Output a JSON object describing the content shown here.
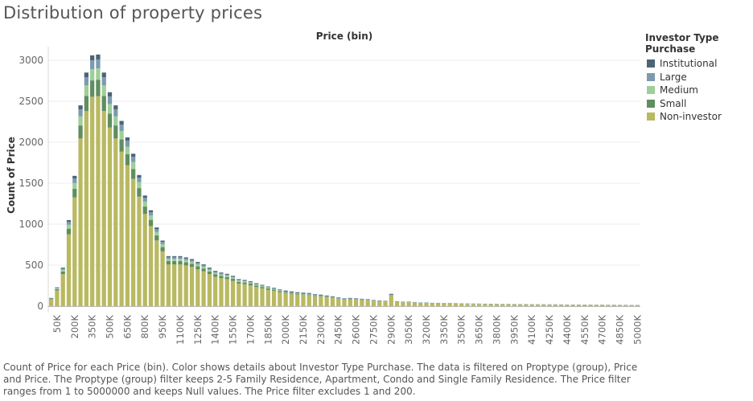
{
  "title": "Distribution of property prices",
  "caption": "Count of Price for each Price (bin).  Color shows details about Investor Type Purchase. The data is filtered on Proptype (group), Price and Price. The Proptype (group) filter keeps 2-5 Family Residence, Apartment, Condo and Single Family Residence. The Price filter ranges from 1 to 5000000 and keeps Null values. The Price filter excludes 1 and 200.",
  "colors": {
    "Institutional": "#4b6478",
    "Large": "#7c9bae",
    "Medium": "#9fcf98",
    "Small": "#5f8e5f",
    "Non-investor": "#b9b962"
  },
  "chart_data": {
    "type": "bar",
    "stacked": true,
    "title": "",
    "xlabel": "Price (bin)",
    "ylabel": "Count of Price",
    "ylim": [
      0,
      3200
    ],
    "yticks": [
      0,
      500,
      1000,
      1500,
      2000,
      2500,
      3000
    ],
    "grid": "horizontal",
    "legend_title": "Investor Type Purchase",
    "legend_position": "right",
    "legend_order": [
      "Institutional",
      "Large",
      "Medium",
      "Small",
      "Non-investor"
    ],
    "categories": [
      "0K",
      "50K",
      "100K",
      "150K",
      "200K",
      "250K",
      "300K",
      "350K",
      "400K",
      "450K",
      "500K",
      "550K",
      "600K",
      "650K",
      "700K",
      "750K",
      "800K",
      "850K",
      "900K",
      "950K",
      "1000K",
      "1050K",
      "1100K",
      "1150K",
      "1200K",
      "1250K",
      "1300K",
      "1350K",
      "1400K",
      "1450K",
      "1500K",
      "1550K",
      "1600K",
      "1650K",
      "1700K",
      "1750K",
      "1800K",
      "1850K",
      "1900K",
      "1950K",
      "2000K",
      "2050K",
      "2100K",
      "2150K",
      "2200K",
      "2250K",
      "2300K",
      "2350K",
      "2400K",
      "2450K",
      "2500K",
      "2550K",
      "2600K",
      "2650K",
      "2700K",
      "2750K",
      "2800K",
      "2850K",
      "2900K",
      "2950K",
      "3000K",
      "3050K",
      "3100K",
      "3150K",
      "3200K",
      "3250K",
      "3300K",
      "3350K",
      "3400K",
      "3450K",
      "3500K",
      "3550K",
      "3600K",
      "3650K",
      "3700K",
      "3750K",
      "3800K",
      "3850K",
      "3900K",
      "3950K",
      "4000K",
      "4050K",
      "4100K",
      "4150K",
      "4200K",
      "4250K",
      "4300K",
      "4350K",
      "4400K",
      "4450K",
      "4500K",
      "4550K",
      "4600K",
      "4650K",
      "4700K",
      "4750K",
      "4800K",
      "4850K",
      "4900K",
      "4950K",
      "5000K"
    ],
    "xtick_labels": [
      "50K",
      "200K",
      "350K",
      "500K",
      "650K",
      "800K",
      "950K",
      "1100K",
      "1250K",
      "1400K",
      "1550K",
      "1700K",
      "1850K",
      "2000K",
      "2150K",
      "2300K",
      "2450K",
      "2600K",
      "2750K",
      "2900K",
      "3050K",
      "3200K",
      "3350K",
      "3500K",
      "3650K",
      "3800K",
      "3950K",
      "4100K",
      "4250K",
      "4400K",
      "4550K",
      "4700K",
      "4850K",
      "5000K"
    ],
    "totals": [
      100,
      230,
      470,
      1050,
      1590,
      2450,
      2850,
      3060,
      3070,
      2850,
      2610,
      2450,
      2260,
      2060,
      1860,
      1600,
      1350,
      1170,
      960,
      800,
      610,
      610,
      610,
      595,
      575,
      540,
      510,
      470,
      430,
      410,
      395,
      370,
      330,
      320,
      305,
      280,
      260,
      240,
      225,
      205,
      190,
      180,
      170,
      165,
      160,
      145,
      140,
      130,
      120,
      105,
      95,
      100,
      95,
      90,
      85,
      75,
      70,
      65,
      150,
      60,
      55,
      55,
      50,
      45,
      45,
      40,
      40,
      38,
      38,
      36,
      34,
      33,
      32,
      31,
      30,
      29,
      28,
      27,
      27,
      26,
      25,
      25,
      24,
      23,
      23,
      22,
      22,
      21,
      20,
      20,
      20,
      19,
      19,
      18,
      18,
      17,
      17,
      16,
      16,
      15,
      15
    ],
    "series": [
      {
        "name": "Non-investor",
        "share": 0.835
      },
      {
        "name": "Small",
        "share": 0.065
      },
      {
        "name": "Medium",
        "share": 0.045
      },
      {
        "name": "Large",
        "share": 0.035
      },
      {
        "name": "Institutional",
        "share": 0.02
      }
    ]
  }
}
